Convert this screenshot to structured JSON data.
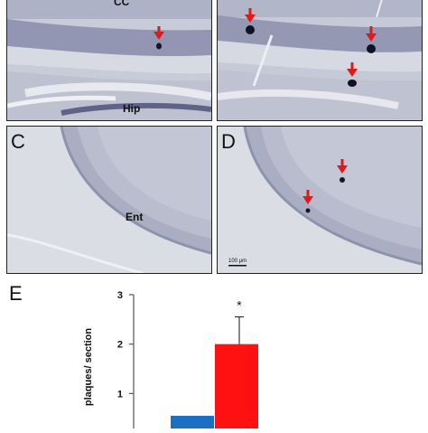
{
  "panels": {
    "a": {
      "region": "CC",
      "region_bottom": "Hip"
    },
    "b": {},
    "c": {
      "label": "C",
      "region": "Ent"
    },
    "d": {
      "label": "D",
      "scalebar": "100 μm"
    }
  },
  "marker_color": "#e0191b",
  "chart_data": {
    "type": "bar",
    "panel_label": "E",
    "ylabel": "plaques/ section",
    "ylim": [
      0,
      3
    ],
    "yticks": [
      1,
      2,
      3
    ],
    "categories": [
      "",
      ""
    ],
    "series": [
      {
        "values": [
          0.55,
          2.0
        ],
        "colors": [
          "#1a6fc4",
          "#ff1111"
        ],
        "errors": [
          null,
          0.55
        ]
      }
    ],
    "annotation": "*"
  }
}
